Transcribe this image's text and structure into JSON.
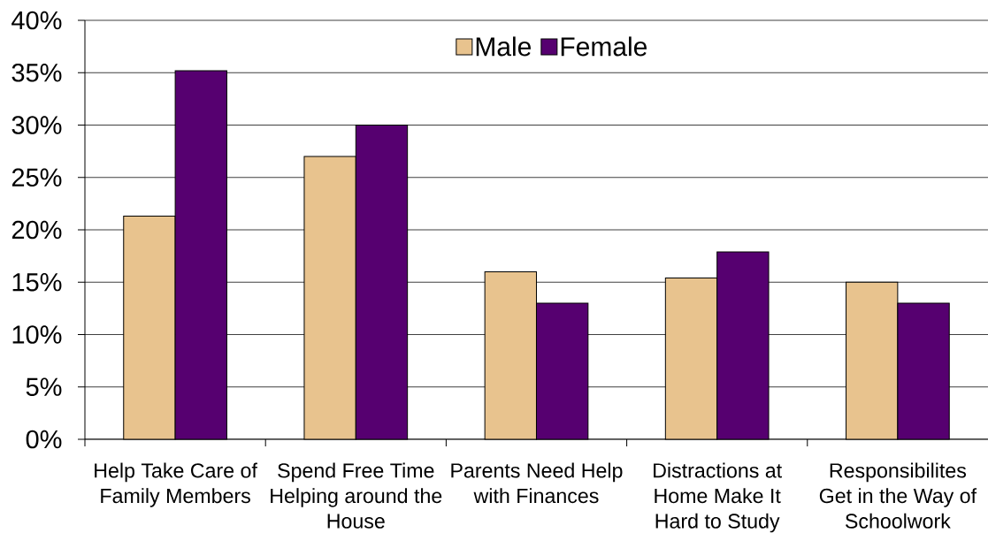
{
  "chart_data": {
    "type": "bar",
    "categories": [
      "Help Take Care of Family Members",
      "Spend Free Time Helping around the House",
      "Parents Need Help with Finances",
      "Distractions at Home Make It Hard to Study",
      "Responsibilites Get in the Way of Schoolwork"
    ],
    "series": [
      {
        "name": "Male",
        "color": "#e8c38e",
        "values": [
          21.3,
          27.0,
          16.0,
          15.4,
          15.0
        ]
      },
      {
        "name": "Female",
        "color": "#560070",
        "values": [
          35.2,
          30.0,
          13.0,
          17.9,
          13.0
        ]
      }
    ],
    "ylim": [
      0,
      40
    ],
    "yticks": [
      {
        "value": 0,
        "label": "0%"
      },
      {
        "value": 5,
        "label": "5%"
      },
      {
        "value": 10,
        "label": "10%"
      },
      {
        "value": 15,
        "label": "15%"
      },
      {
        "value": 20,
        "label": "20%"
      },
      {
        "value": 25,
        "label": "25%"
      },
      {
        "value": 30,
        "label": "30%"
      },
      {
        "value": 35,
        "label": "35%"
      },
      {
        "value": 40,
        "label": "40%"
      }
    ],
    "grid": "y",
    "legend": "top"
  }
}
